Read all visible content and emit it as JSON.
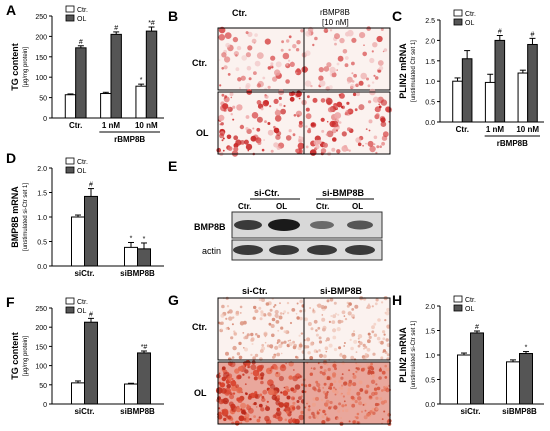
{
  "figure": {
    "panel_letters": [
      "A",
      "B",
      "C",
      "D",
      "E",
      "F",
      "G",
      "H"
    ],
    "legend": {
      "ctr": "Ctr.",
      "ol": "OL"
    },
    "colors": {
      "ctr": "#ffffff",
      "ol": "#555555",
      "stain_light": "#f2c9c9",
      "stain_dark": "#d43a3a",
      "tissue_bg": "#fbf2ef"
    }
  },
  "panel_b": {
    "col_ctr": "Ctr.",
    "col_rbmp": "rBMP8B",
    "col_rbmp_sub": "[10 nM]",
    "row_ctr": "Ctr.",
    "row_ol": "OL"
  },
  "panel_e": {
    "group_sictr": "si-Ctr.",
    "group_sibmp": "si-BMP8B",
    "lanes": [
      "Ctr.",
      "OL",
      "Ctr.",
      "OL"
    ],
    "row_bmp": "BMP8B",
    "row_actin": "actin"
  },
  "panel_g": {
    "col_sictr": "si-Ctr.",
    "col_sibmp": "si-BMP8B",
    "row_ctr": "Ctr.",
    "row_ol": "OL"
  },
  "chart_data": [
    {
      "id": "A",
      "type": "bar",
      "ylabel": "TG content",
      "ylabel_unit": "[µg/mg protein]",
      "ylim": [
        0,
        250
      ],
      "yticks": [
        0,
        50,
        100,
        150,
        200,
        250
      ],
      "categories": [
        "Ctr.",
        "1 nM",
        "10 nM"
      ],
      "group_label": "rBMP8B",
      "series": [
        {
          "name": "Ctr.",
          "values": [
            57,
            60,
            78
          ],
          "errors": [
            2,
            3,
            5
          ],
          "marks": [
            "",
            "",
            "*"
          ]
        },
        {
          "name": "OL",
          "values": [
            172,
            205,
            213
          ],
          "errors": [
            5,
            6,
            10
          ],
          "marks": [
            "#",
            "#",
            "*#"
          ]
        }
      ]
    },
    {
      "id": "C",
      "type": "bar",
      "ylabel": "PLIN2 mRNA",
      "ylabel_unit": "[unstimulated Ctr set 1]",
      "ylim": [
        0,
        2.5
      ],
      "yticks": [
        0.0,
        0.5,
        1.0,
        1.5,
        2.0,
        2.5
      ],
      "categories": [
        "Ctr.",
        "1 nM",
        "10 nM"
      ],
      "group_label": "rBMP8B",
      "series": [
        {
          "name": "Ctr.",
          "values": [
            1.0,
            0.97,
            1.2
          ],
          "errors": [
            0.08,
            0.2,
            0.07
          ],
          "marks": [
            "",
            "",
            ""
          ]
        },
        {
          "name": "OL",
          "values": [
            1.55,
            2.0,
            1.9
          ],
          "errors": [
            0.2,
            0.12,
            0.15
          ],
          "marks": [
            "",
            "#",
            "#"
          ]
        }
      ]
    },
    {
      "id": "D",
      "type": "bar",
      "ylabel": "BMP8B mRNA",
      "ylabel_unit": "[unstimulated si-Ctr set 1]",
      "ylim": [
        0,
        2.0
      ],
      "yticks": [
        0.0,
        0.5,
        1.0,
        1.5,
        2.0
      ],
      "categories": [
        "siCtr.",
        "siBMP8B"
      ],
      "group_label": "",
      "series": [
        {
          "name": "Ctr.",
          "values": [
            1.0,
            0.38
          ],
          "errors": [
            0.04,
            0.1
          ],
          "marks": [
            "",
            "*"
          ]
        },
        {
          "name": "OL",
          "values": [
            1.42,
            0.35
          ],
          "errors": [
            0.16,
            0.12
          ],
          "marks": [
            "#",
            "*"
          ]
        }
      ]
    },
    {
      "id": "F",
      "type": "bar",
      "ylabel": "TG content",
      "ylabel_unit": "[µg/mg protein]",
      "ylim": [
        0,
        250
      ],
      "yticks": [
        0,
        50,
        100,
        150,
        200,
        250
      ],
      "categories": [
        "siCtr.",
        "siBMP8B"
      ],
      "group_label": "",
      "series": [
        {
          "name": "Ctr.",
          "values": [
            55,
            52
          ],
          "errors": [
            5,
            2
          ],
          "marks": [
            "",
            ""
          ]
        },
        {
          "name": "OL",
          "values": [
            213,
            133
          ],
          "errors": [
            10,
            5
          ],
          "marks": [
            "#",
            "*#"
          ]
        }
      ]
    },
    {
      "id": "H",
      "type": "bar",
      "ylabel": "PLIN2 mRNA",
      "ylabel_unit": "[unstimulated si-Ctr set 1]",
      "ylim": [
        0,
        2.0
      ],
      "yticks": [
        0.0,
        0.5,
        1.0,
        1.5,
        2.0
      ],
      "categories": [
        "siCtr.",
        "siBMP8B"
      ],
      "group_label": "",
      "series": [
        {
          "name": "Ctr.",
          "values": [
            1.0,
            0.86
          ],
          "errors": [
            0.04,
            0.04
          ],
          "marks": [
            "",
            ""
          ]
        },
        {
          "name": "OL",
          "values": [
            1.45,
            1.03
          ],
          "errors": [
            0.04,
            0.04
          ],
          "marks": [
            "#",
            "*"
          ]
        }
      ]
    }
  ]
}
